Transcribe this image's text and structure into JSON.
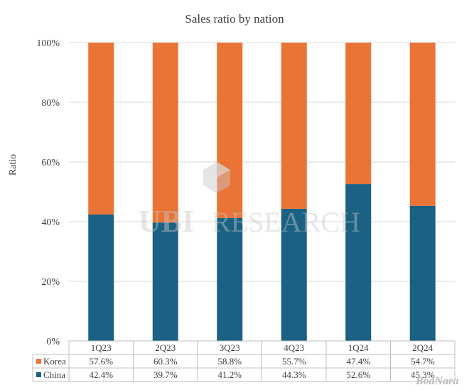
{
  "chart_data": {
    "type": "bar",
    "stacked": true,
    "title": "Sales ratio by nation",
    "ylabel": "Ratio",
    "ylim": [
      0,
      100
    ],
    "yticks": [
      "0%",
      "20%",
      "40%",
      "60%",
      "80%",
      "100%"
    ],
    "categories": [
      "1Q23",
      "2Q23",
      "3Q23",
      "4Q23",
      "1Q24",
      "2Q24"
    ],
    "series": [
      {
        "name": "China",
        "color": "#1a6184",
        "values": [
          42.4,
          39.7,
          41.2,
          44.3,
          52.6,
          45.3
        ],
        "labels": [
          "42.4%",
          "39.7%",
          "41.2%",
          "44.3%",
          "52.6%",
          "45.3%"
        ]
      },
      {
        "name": "Korea",
        "color": "#e97435",
        "values": [
          57.6,
          60.3,
          58.8,
          55.7,
          47.4,
          54.7
        ],
        "labels": [
          "57.6%",
          "60.3%",
          "58.8%",
          "55.7%",
          "47.4%",
          "54.7%"
        ]
      }
    ],
    "table_rows": [
      "Korea",
      "China"
    ],
    "grid": true,
    "legend": "data-table"
  },
  "watermark": {
    "left": "UBI",
    "right": "RESEARCH"
  },
  "brand": "BodNara"
}
